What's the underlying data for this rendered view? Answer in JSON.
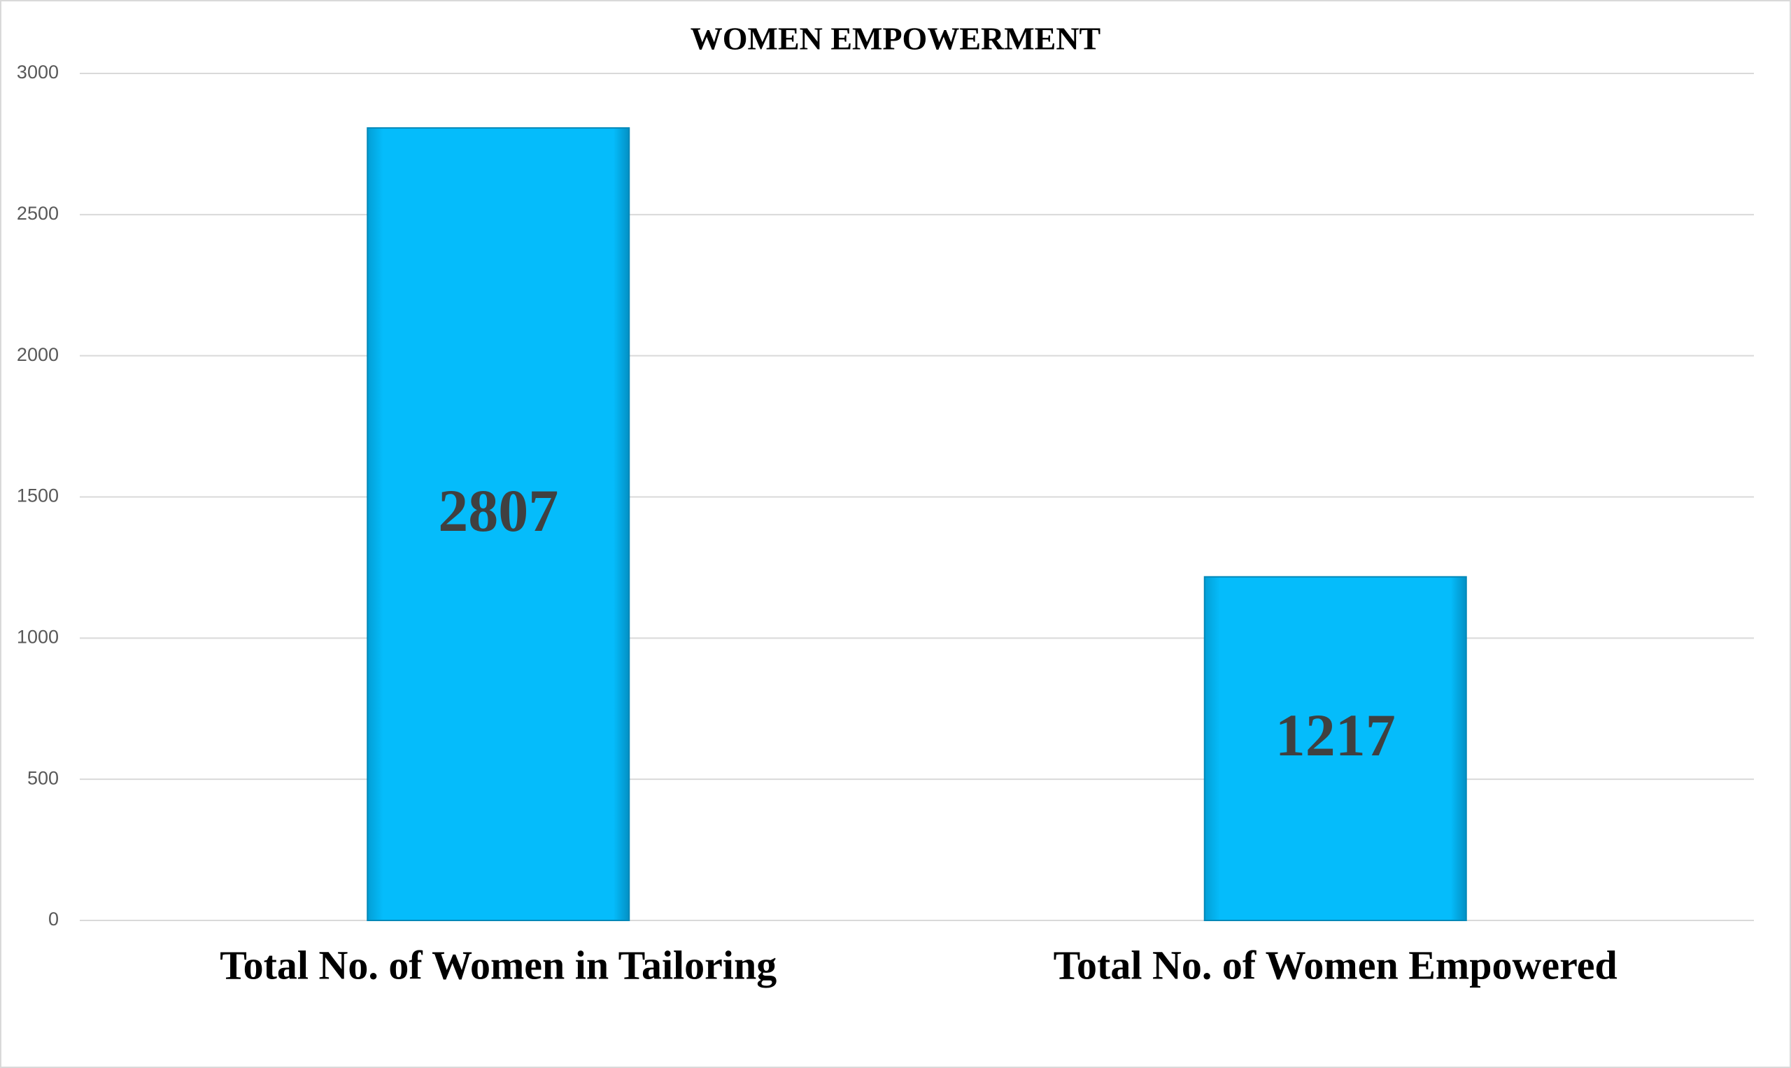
{
  "chart_data": {
    "type": "bar",
    "title": "WOMEN EMPOWERMENT",
    "categories": [
      "Total No. of Women in Tailoring",
      "Total No. of Women Empowered"
    ],
    "values": [
      2807,
      1217
    ],
    "color": "#05bcfb",
    "ylim": [
      0,
      3000
    ],
    "yticks": [
      0,
      500,
      1000,
      1500,
      2000,
      2500,
      3000
    ],
    "grid": true
  }
}
